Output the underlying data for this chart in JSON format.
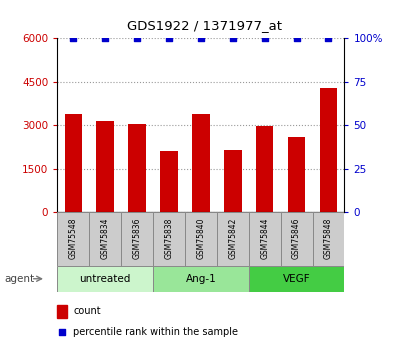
{
  "title": "GDS1922 / 1371977_at",
  "samples": [
    "GSM75548",
    "GSM75834",
    "GSM75836",
    "GSM75838",
    "GSM75840",
    "GSM75842",
    "GSM75844",
    "GSM75846",
    "GSM75848"
  ],
  "counts": [
    3380,
    3150,
    3050,
    2100,
    3380,
    2150,
    2980,
    2600,
    4280
  ],
  "percentiles": [
    100,
    100,
    100,
    100,
    100,
    100,
    100,
    100,
    100
  ],
  "groups": [
    {
      "label": "untreated",
      "start": 0,
      "end": 3,
      "color": "#ccf5cc"
    },
    {
      "label": "Ang-1",
      "start": 3,
      "end": 6,
      "color": "#99e699"
    },
    {
      "label": "VEGF",
      "start": 6,
      "end": 9,
      "color": "#44cc44"
    }
  ],
  "ylim_left": [
    0,
    6000
  ],
  "yticks_left": [
    0,
    1500,
    3000,
    4500,
    6000
  ],
  "ylim_right": [
    0,
    100
  ],
  "yticks_right": [
    0,
    25,
    50,
    75,
    100
  ],
  "bar_color": "#cc0000",
  "dot_color": "#0000cc",
  "bar_width": 0.55,
  "left_tick_color": "#cc0000",
  "right_tick_color": "#0000cc",
  "grid_color": "#999999",
  "sample_bg_color": "#cccccc",
  "legend_items": [
    {
      "color": "#cc0000",
      "marker": "s",
      "label": "count"
    },
    {
      "color": "#0000cc",
      "marker": "s",
      "label": "percentile rank within the sample"
    }
  ]
}
